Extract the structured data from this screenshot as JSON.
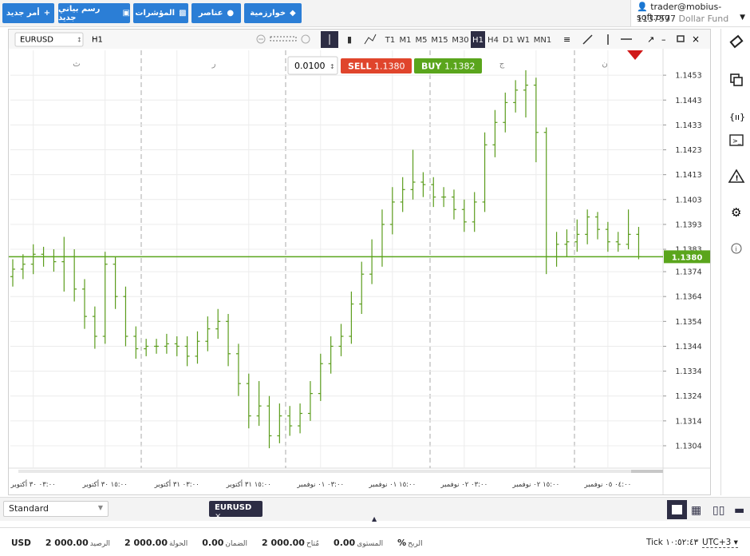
{
  "toolbar": {
    "buttons": [
      "أمر جديد",
      "رسم بياني جديد",
      "المؤشرات",
      "عناصر",
      "خوارزمية"
    ]
  },
  "account": {
    "user": "trader@mobius-soft.org",
    "id": "1137577",
    "fund": "Dollar Fund"
  },
  "chart_header": {
    "symbol": "EURUSD",
    "period": "H1",
    "timeframes": [
      "T1",
      "M1",
      "M5",
      "M15",
      "M30",
      "H1",
      "H4",
      "D1",
      "W1",
      "MN1"
    ]
  },
  "trade": {
    "volume": "0.0100",
    "sell_label": "SELL",
    "sell_price": "1.1380",
    "buy_label": "BUY",
    "buy_price": "1.1382"
  },
  "day_markers": [
    "ث",
    "ر",
    "ج",
    "ن"
  ],
  "chart_data": {
    "type": "ohlc",
    "color": "#5b9c1c",
    "ylim": [
      1.1295,
      1.1463
    ],
    "yticks": [
      1.1453,
      1.1443,
      1.1433,
      1.1423,
      1.1413,
      1.1403,
      1.1393,
      1.1383,
      1.1374,
      1.1364,
      1.1354,
      1.1344,
      1.1334,
      1.1324,
      1.1314,
      1.1304
    ],
    "grid": true,
    "price_line": {
      "value": 1.138,
      "label": "1.1380",
      "color": "#5aa51c"
    },
    "categories": [
      null,
      null,
      "٠٣:٠٠ ٣٠ أكتوبر",
      null,
      null,
      null,
      null,
      null,
      null,
      "١٥:٠٠ ٣٠ أكتوبر",
      null,
      null,
      null,
      null,
      null,
      null,
      "٠٣:٠٠ ٣١ أكتوبر",
      null,
      null,
      null,
      null,
      null,
      null,
      "١٥:٠٠ ٣١ أكتوبر",
      null,
      null,
      null,
      null,
      null,
      null,
      "٠٣:٠٠ ٠١ نوفمبر",
      null,
      null,
      null,
      null,
      null,
      null,
      "١٥:٠٠ ٠١ نوفمبر",
      null,
      null,
      null,
      null,
      null,
      null,
      "٠٣:٠٠ ٠٢ نوفمبر",
      null,
      null,
      null,
      null,
      null,
      null,
      "١٥:٠٠ ٠٢ نوفمبر",
      null,
      null,
      null,
      null,
      null,
      null,
      "٠٤:٠٠ ٠٥ نوفمبر",
      null,
      null,
      null
    ],
    "open": [
      1.1372,
      1.1375,
      1.1377,
      1.1381,
      1.138,
      1.1378,
      1.138,
      1.1367,
      1.1356,
      1.1348,
      1.1377,
      1.1364,
      1.1348,
      1.1343,
      1.1344,
      1.1344,
      1.1345,
      1.1344,
      1.134,
      1.1346,
      1.1351,
      1.1354,
      1.1341,
      1.1329,
      1.1316,
      1.132,
      1.1308,
      1.1316,
      1.1312,
      1.1317,
      1.1325,
      1.1337,
      1.1344,
      1.1348,
      1.1361,
      1.1373,
      1.138,
      1.1393,
      1.1402,
      1.1407,
      1.141,
      1.1409,
      1.1404,
      1.1404,
      1.1399,
      1.1394,
      1.1402,
      1.1425,
      1.1434,
      1.1442,
      1.1447,
      1.1449,
      1.143,
      1.138,
      1.1385,
      1.1386,
      1.1389,
      1.1396,
      1.1391,
      1.1386,
      1.1385,
      1.1389
    ],
    "high": [
      1.1379,
      1.1381,
      1.1385,
      1.1384,
      1.1383,
      1.1388,
      1.1383,
      1.1371,
      1.136,
      1.1382,
      1.138,
      1.1368,
      1.1352,
      1.1347,
      1.1347,
      1.1349,
      1.1348,
      1.1348,
      1.135,
      1.1356,
      1.1359,
      1.1357,
      1.1345,
      1.1333,
      1.133,
      1.1324,
      1.1321,
      1.132,
      1.1321,
      1.133,
      1.1341,
      1.1348,
      1.1353,
      1.1366,
      1.1378,
      1.1387,
      1.1399,
      1.1408,
      1.1412,
      1.1423,
      1.1414,
      1.1412,
      1.1408,
      1.1407,
      1.1403,
      1.1406,
      1.143,
      1.1439,
      1.1446,
      1.1451,
      1.1455,
      1.1452,
      1.1432,
      1.139,
      1.1391,
      1.1395,
      1.1399,
      1.1398,
      1.1394,
      1.139,
      1.1399,
      1.1392
    ],
    "low": [
      1.1368,
      1.1371,
      1.1373,
      1.1376,
      1.1374,
      1.1366,
      1.1362,
      1.1351,
      1.1343,
      1.1345,
      1.1359,
      1.1344,
      1.1339,
      1.134,
      1.1341,
      1.1341,
      1.134,
      1.1336,
      1.1337,
      1.1342,
      1.1347,
      1.1336,
      1.1324,
      1.1311,
      1.1312,
      1.1303,
      1.1305,
      1.1308,
      1.1309,
      1.1314,
      1.1322,
      1.1333,
      1.134,
      1.1345,
      1.1357,
      1.1369,
      1.1376,
      1.1389,
      1.1398,
      1.1403,
      1.1404,
      1.14,
      1.14,
      1.1395,
      1.139,
      1.139,
      1.1398,
      1.142,
      1.143,
      1.1438,
      1.1436,
      1.1418,
      1.1373,
      1.1376,
      1.138,
      1.1382,
      1.1385,
      1.1387,
      1.1382,
      1.1382,
      1.1383,
      1.1379
    ],
    "close": [
      1.1375,
      1.1377,
      1.1381,
      1.138,
      1.1378,
      1.138,
      1.1367,
      1.1356,
      1.1348,
      1.1377,
      1.1364,
      1.1348,
      1.1343,
      1.1344,
      1.1344,
      1.1345,
      1.1344,
      1.134,
      1.1346,
      1.1351,
      1.1354,
      1.1341,
      1.1329,
      1.1316,
      1.132,
      1.1308,
      1.1316,
      1.1312,
      1.1317,
      1.1325,
      1.1337,
      1.1344,
      1.1348,
      1.1361,
      1.1373,
      1.138,
      1.1393,
      1.1402,
      1.1407,
      1.141,
      1.1409,
      1.1404,
      1.1404,
      1.1399,
      1.1394,
      1.1402,
      1.1425,
      1.1434,
      1.1442,
      1.1447,
      1.1449,
      1.143,
      1.138,
      1.1385,
      1.1386,
      1.1389,
      1.1396,
      1.1391,
      1.1386,
      1.1385,
      1.1389,
      1.138
    ]
  },
  "bottom": {
    "template": "Standard",
    "tab": "EURUSD"
  },
  "status": {
    "currency": "USD",
    "items": [
      {
        "label": "الرصيد",
        "value": "2 000.00"
      },
      {
        "label": "الحولة",
        "value": "2 000.00"
      },
      {
        "label": "الضمان",
        "value": "0.00"
      },
      {
        "label": "مُتاح",
        "value": "2 000.00"
      },
      {
        "label": "المستوى",
        "value": "0.00"
      },
      {
        "label": "الربح",
        "value": "%"
      }
    ],
    "clock_label": "Tick",
    "clock": "١٠:٥٢:٤٣",
    "timezone": "UTC+3"
  }
}
